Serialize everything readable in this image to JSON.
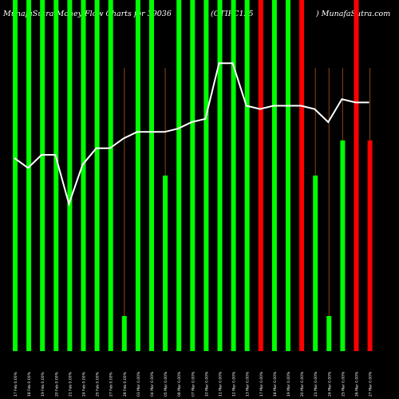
{
  "header": {
    "left": "MunafaSutra Money Flow Charts for 39036",
    "middle": "(OTIFC125",
    "right": ") MunafaSutra.com"
  },
  "chart_data": {
    "type": "bar",
    "title": "MunafaSutra Money Flow Charts for 39036 (OTIFC125) MunafaSutra.com",
    "categories": [
      "17 Feb 0.00%",
      "18 Feb 0.00%",
      "19 Feb 0.00%",
      "20 Feb 0.00%",
      "21 Feb 0.00%",
      "24 Feb 0.00%",
      "25 Feb 0.00%",
      "27 Feb 0.00%",
      "28 Feb 0.00%",
      "03 Mar 0.00%",
      "04 Mar 0.00%",
      "05 Mar 0.00%",
      "06 Mar 0.00%",
      "07 Mar 0.00%",
      "10 Mar 0.00%",
      "11 Mar 0.00%",
      "12 Mar 0.00%",
      "13 Mar 0.00%",
      "17 Mar 0.00%",
      "18 Mar 0.00%",
      "19 Mar 0.00%",
      "20 Mar 0.00%",
      "21 Mar 0.00%",
      "24 Mar 0.00%",
      "25 Mar 0.00%",
      "26 Mar 0.00%",
      "27 Mar 0.00%"
    ],
    "bars": {
      "values": [
        100,
        100,
        100,
        100,
        100,
        100,
        100,
        100,
        10,
        100,
        100,
        50,
        100,
        100,
        100,
        100,
        100,
        100,
        100,
        100,
        100,
        100,
        50,
        10,
        60,
        100,
        60
      ],
      "colors": [
        "#00ff00",
        "#00ff00",
        "#00ff00",
        "#00ff00",
        "#00ff00",
        "#00ff00",
        "#00ff00",
        "#00ff00",
        "#00ff00",
        "#00ff00",
        "#00ff00",
        "#00ff00",
        "#00ff00",
        "#00ff00",
        "#00ff00",
        "#00ff00",
        "#00ff00",
        "#00ff00",
        "#ff0000",
        "#00ff00",
        "#00ff00",
        "#ff0000",
        "#00ff00",
        "#00ff00",
        "#00ff00",
        "#ff0000",
        "#ff0000"
      ]
    },
    "line": {
      "color": "#ffffff",
      "values": [
        59,
        56,
        60,
        60,
        45,
        57,
        62,
        62,
        65,
        67,
        67,
        67,
        68,
        70,
        71,
        88,
        88,
        75,
        74,
        75,
        75,
        75,
        74,
        70,
        77,
        76,
        76
      ]
    },
    "ylim": [
      0,
      100
    ],
    "grid": false,
    "colors": {
      "background": "#000000",
      "positive_bar": "#00ff00",
      "negative_bar": "#ff0000",
      "thin_line": "#8b4513",
      "text": "#ffffff",
      "price_line": "#ffffff"
    }
  }
}
